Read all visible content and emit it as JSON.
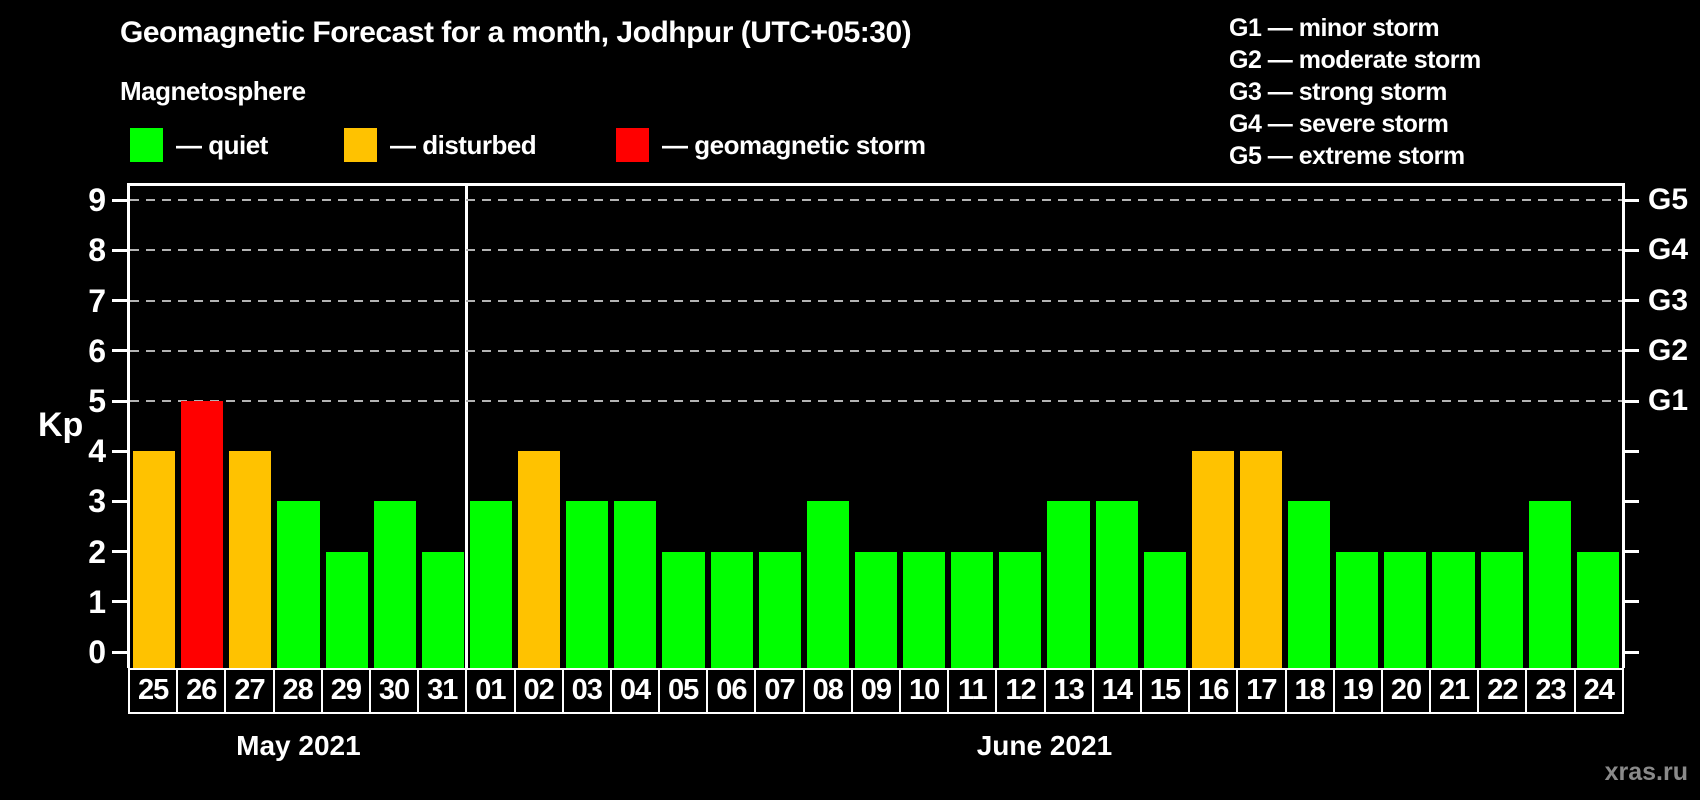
{
  "title": "Geomagnetic Forecast for a month, Jodhpur (UTC+05:30)",
  "subtitle": "Magnetosphere",
  "legend": {
    "items": [
      {
        "id": "quiet",
        "label": "— quiet",
        "color": "#00ff00"
      },
      {
        "id": "disturbed",
        "label": "— disturbed",
        "color": "#ffc200"
      },
      {
        "id": "storm",
        "label": "— geomagnetic storm",
        "color": "#ff0000"
      }
    ]
  },
  "g_legend": [
    "G1 — minor storm",
    "G2 — moderate storm",
    "G3 — strong storm",
    "G4 — severe storm",
    "G5 — extreme storm"
  ],
  "watermark": "xras.ru",
  "chart_data": {
    "type": "bar",
    "title": "Geomagnetic Forecast for a month, Jodhpur (UTC+05:30)",
    "ylabel": "Kp",
    "ylim": [
      0,
      9.3
    ],
    "yticks": [
      0,
      1,
      2,
      3,
      4,
      5,
      6,
      7,
      8,
      9
    ],
    "gridlines": [
      5,
      6,
      7,
      8,
      9
    ],
    "grid_style": "dashed horizontal lines at storm levels G1–G5",
    "right_axis": [
      {
        "kp": 5,
        "label": "G1"
      },
      {
        "kp": 6,
        "label": "G2"
      },
      {
        "kp": 7,
        "label": "G3"
      },
      {
        "kp": 8,
        "label": "G4"
      },
      {
        "kp": 9,
        "label": "G5"
      }
    ],
    "categories": [
      "25",
      "26",
      "27",
      "28",
      "29",
      "30",
      "31",
      "01",
      "02",
      "03",
      "04",
      "05",
      "06",
      "07",
      "08",
      "09",
      "10",
      "11",
      "12",
      "13",
      "14",
      "15",
      "16",
      "17",
      "18",
      "19",
      "20",
      "21",
      "22",
      "23",
      "24"
    ],
    "values": [
      4,
      5,
      4,
      3,
      2,
      3,
      2,
      3,
      4,
      3,
      3,
      2,
      2,
      2,
      3,
      2,
      2,
      2,
      2,
      3,
      3,
      2,
      4,
      4,
      3,
      2,
      2,
      2,
      2,
      3,
      2
    ],
    "color_rules": {
      "quiet_max": 3,
      "disturbed_at": 4,
      "storm_from": 5
    },
    "months": [
      {
        "label": "May 2021",
        "count": 7
      },
      {
        "label": "June 2021",
        "count": 24
      }
    ],
    "legend_position": "top-left"
  }
}
